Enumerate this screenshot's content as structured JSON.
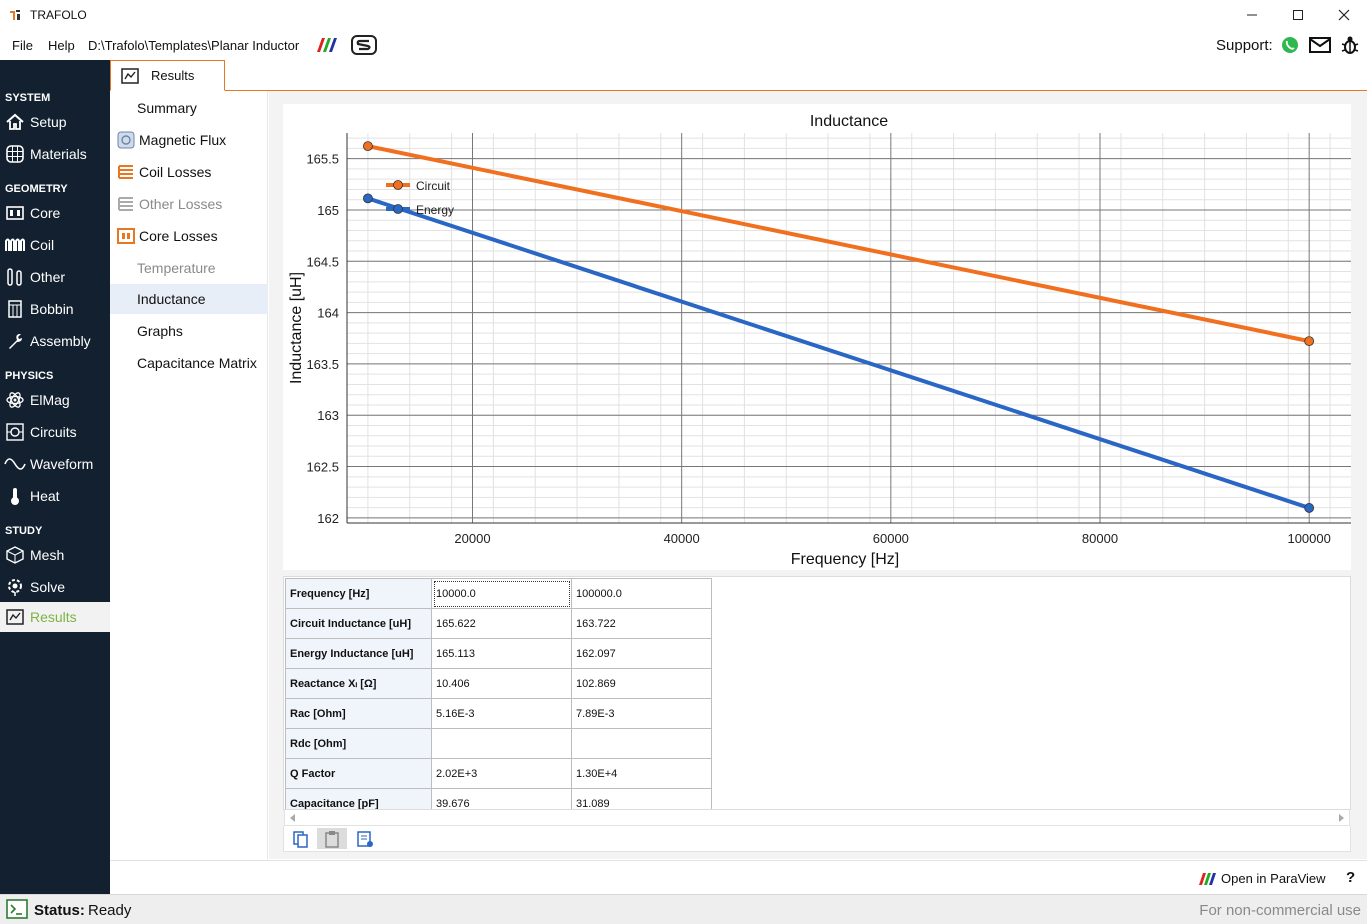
{
  "app": {
    "title": "TRAFOLO",
    "path": "D:\\Trafolo\\Templates\\Planar Inductor",
    "support_label": "Support:"
  },
  "menu": {
    "file": "File",
    "help": "Help"
  },
  "sidebar": {
    "sections": {
      "system": "SYSTEM",
      "geometry": "GEOMETRY",
      "physics": "PHYSICS",
      "study": "STUDY"
    },
    "items": [
      {
        "label": "Setup",
        "icon": "home-icon"
      },
      {
        "label": "Materials",
        "icon": "globe-grid-icon"
      },
      {
        "label": "Core",
        "icon": "core-icon"
      },
      {
        "label": "Coil",
        "icon": "coil-icon"
      },
      {
        "label": "Other",
        "icon": "other-icon"
      },
      {
        "label": "Bobbin",
        "icon": "bobbin-icon"
      },
      {
        "label": "Assembly",
        "icon": "wrench-icon"
      },
      {
        "label": "ElMag",
        "icon": "atom-icon"
      },
      {
        "label": "Circuits",
        "icon": "circuit-icon"
      },
      {
        "label": "Waveform",
        "icon": "sine-wave-icon"
      },
      {
        "label": "Heat",
        "icon": "thermometer-icon"
      },
      {
        "label": "Mesh",
        "icon": "mesh-cube-icon"
      },
      {
        "label": "Solve",
        "icon": "solve-gear-icon"
      },
      {
        "label": "Results",
        "icon": "results-chart-icon"
      }
    ]
  },
  "tabs": {
    "results": "Results"
  },
  "result_list": [
    {
      "label": "Summary"
    },
    {
      "label": "Magnetic Flux"
    },
    {
      "label": "Coil Losses"
    },
    {
      "label": "Other Losses"
    },
    {
      "label": "Core Losses"
    },
    {
      "label": "Temperature"
    },
    {
      "label": "Inductance"
    },
    {
      "label": "Graphs"
    },
    {
      "label": "Capacitance Matrix"
    }
  ],
  "chart_data": {
    "type": "line",
    "title": "Inductance",
    "xlabel": "Frequency [Hz]",
    "ylabel": "Inductance [uH]",
    "xlim": [
      8000,
      104000
    ],
    "ylim": [
      161.95,
      165.75
    ],
    "xticks": [
      20000,
      40000,
      60000,
      80000,
      100000
    ],
    "yticks": [
      162,
      162.5,
      163,
      163.5,
      164,
      164.5,
      165,
      165.5
    ],
    "ytick_labels": [
      "162",
      "162.5",
      "163",
      "163.5",
      "164",
      "164.5",
      "165",
      "165.5"
    ],
    "grid": true,
    "legend_position": "top-left",
    "series": [
      {
        "name": "Circuit",
        "color": "#f07020",
        "x": [
          10000,
          100000
        ],
        "y": [
          165.622,
          163.722
        ]
      },
      {
        "name": "Energy",
        "color": "#2a66c4",
        "x": [
          10000,
          100000
        ],
        "y": [
          165.113,
          162.097
        ]
      }
    ]
  },
  "table": {
    "rows": [
      {
        "header": "Frequency [Hz]",
        "values": [
          "10000.0",
          "100000.0"
        ]
      },
      {
        "header": "Circuit Inductance [uH]",
        "values": [
          "165.622",
          "163.722"
        ]
      },
      {
        "header": "Energy Inductance [uH]",
        "values": [
          "165.113",
          "162.097"
        ]
      },
      {
        "header": "Reactance Xₗ [Ω]",
        "values": [
          "10.406",
          "102.869"
        ]
      },
      {
        "header": "Rac [Ohm]",
        "values": [
          "5.16E-3",
          "7.89E-3"
        ]
      },
      {
        "header": "Rdc [Ohm]",
        "values": [
          "",
          ""
        ]
      },
      {
        "header": "Q Factor",
        "values": [
          "2.02E+3",
          "1.30E+4"
        ]
      },
      {
        "header": "Capacitance [pF]",
        "values": [
          "39.676",
          "31.089"
        ]
      }
    ]
  },
  "actions": {
    "paraview": "Open in ParaView",
    "help": "?"
  },
  "status": {
    "label": "Status:",
    "value": "Ready",
    "license": "For non-commercial use"
  }
}
